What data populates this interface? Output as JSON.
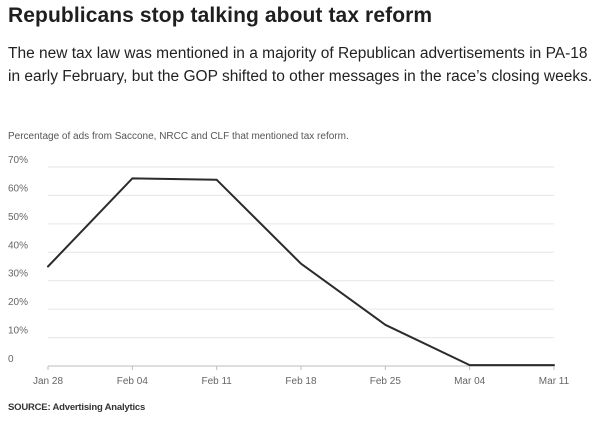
{
  "title": "Republicans stop talking about tax reform",
  "subtitle": "The new tax law was mentioned in a majority of Republican advertisements in PA-18 in early February, but the GOP shifted to other messages in the race’s closing weeks.",
  "caption": "Percentage of ads from Saccone, NRCC and CLF that mentioned tax reform.",
  "source": "SOURCE: Advertising Analytics",
  "chart_data": {
    "type": "line",
    "title": "",
    "xlabel": "",
    "ylabel": "",
    "x": [
      "Jan 28",
      "Feb 04",
      "Feb 11",
      "Feb 18",
      "Feb 25",
      "Mar 04",
      "Mar 11"
    ],
    "series": [
      {
        "values": [
          35,
          66,
          65.5,
          36,
          14.5,
          0.3,
          0.3
        ]
      }
    ],
    "yticks": [
      "0",
      "10%",
      "20%",
      "30%",
      "40%",
      "50%",
      "60%",
      "70%"
    ],
    "ylim": [
      0,
      70
    ],
    "grid": true,
    "line_color": "#2b2b2b",
    "grid_color": "#e6e6e6"
  }
}
